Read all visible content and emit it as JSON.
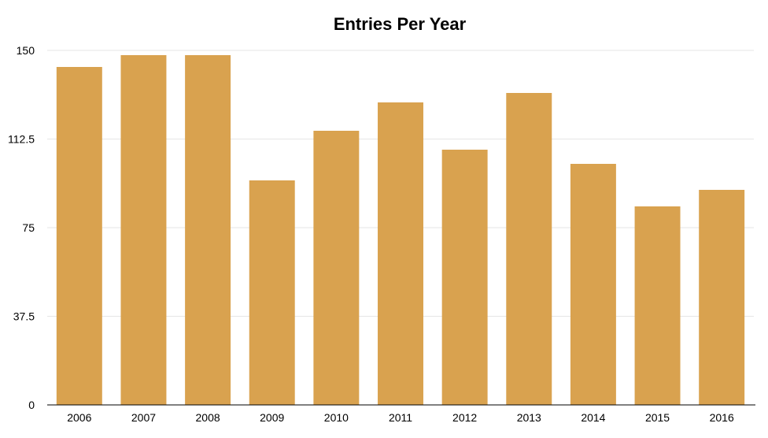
{
  "chart_data": {
    "type": "bar",
    "title": "Entries Per Year",
    "xlabel": "",
    "ylabel": "",
    "categories": [
      "2006",
      "2007",
      "2008",
      "2009",
      "2010",
      "2011",
      "2012",
      "2013",
      "2014",
      "2015",
      "2016"
    ],
    "values": [
      143,
      148,
      148,
      95,
      116,
      128,
      108,
      132,
      102,
      84,
      91
    ],
    "ylim": [
      0,
      150
    ],
    "yticks": [
      "0",
      "37.5",
      "75",
      "112.5",
      "150"
    ],
    "grid": true,
    "legend": "none",
    "bar_color": "#d9a24f"
  }
}
